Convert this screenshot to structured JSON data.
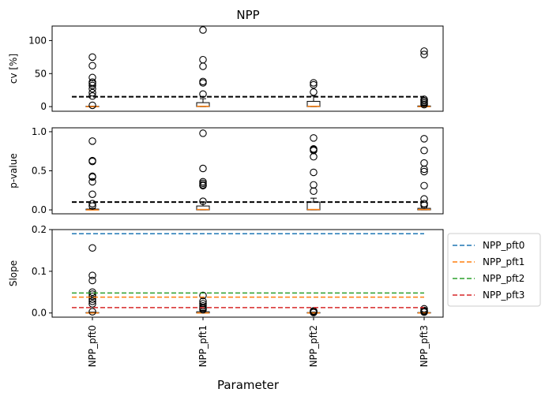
{
  "figure": {
    "title": "NPP",
    "xlabel": "Parameter"
  },
  "chart_data": [
    {
      "type": "box",
      "name": "cv",
      "ylabel": "cv [%]",
      "yticks": [
        0,
        50,
        100
      ],
      "ylim": [
        -7,
        122
      ],
      "categories": [
        "NPP_pft0",
        "NPP_pft1",
        "NPP_pft2",
        "NPP_pft3"
      ],
      "boxes": [
        {
          "q1": 0,
          "median": 0,
          "q3": 0.5,
          "whisker_low": 0,
          "whisker_high": 0.5,
          "outliers": [
            75,
            62,
            44,
            37,
            35,
            32,
            27,
            21,
            16,
            2
          ]
        },
        {
          "q1": 0,
          "median": 0.5,
          "q3": 6,
          "whisker_low": 0,
          "whisker_high": 12,
          "outliers": [
            116,
            71,
            61,
            38,
            36,
            19
          ]
        },
        {
          "q1": 0,
          "median": 0.5,
          "q3": 8,
          "whisker_low": 0,
          "whisker_high": 16,
          "outliers": [
            36,
            33,
            22
          ]
        },
        {
          "q1": 0,
          "median": 0,
          "q3": 1,
          "whisker_low": 0,
          "whisker_high": 2,
          "outliers": [
            84,
            79,
            11,
            9,
            7,
            5,
            3
          ]
        }
      ],
      "reference_line": 15
    },
    {
      "type": "box",
      "name": "p-value",
      "ylabel": "p-value",
      "yticks": [
        0.0,
        0.5,
        1.0
      ],
      "ylim": [
        -0.05,
        1.05
      ],
      "categories": [
        "NPP_pft0",
        "NPP_pft1",
        "NPP_pft2",
        "NPP_pft3"
      ],
      "boxes": [
        {
          "q1": 0,
          "median": 0,
          "q3": 0.01,
          "whisker_low": 0,
          "whisker_high": 0.02,
          "outliers": [
            0.88,
            0.63,
            0.62,
            0.43,
            0.42,
            0.36,
            0.2,
            0.08,
            0.05
          ]
        },
        {
          "q1": 0,
          "median": 0.005,
          "q3": 0.05,
          "whisker_low": 0,
          "whisker_high": 0.1,
          "outliers": [
            0.98,
            0.53,
            0.36,
            0.34,
            0.32,
            0.31,
            0.11
          ]
        },
        {
          "q1": 0,
          "median": 0.005,
          "q3": 0.1,
          "whisker_low": 0,
          "whisker_high": 0.15,
          "outliers": [
            0.92,
            0.78,
            0.77,
            0.76,
            0.68,
            0.48,
            0.32,
            0.24
          ]
        },
        {
          "q1": 0,
          "median": 0.005,
          "q3": 0.02,
          "whisker_low": 0,
          "whisker_high": 0.04,
          "outliers": [
            0.91,
            0.76,
            0.6,
            0.52,
            0.49,
            0.31,
            0.14,
            0.08,
            0.06
          ]
        }
      ],
      "reference_line": 0.1
    },
    {
      "type": "box",
      "name": "slope",
      "ylabel": "Slope",
      "yticks": [
        0.0,
        0.1,
        0.2
      ],
      "ylim": [
        -0.01,
        0.2
      ],
      "categories": [
        "NPP_pft0",
        "NPP_pft1",
        "NPP_pft2",
        "NPP_pft3"
      ],
      "boxes": [
        {
          "q1": 0,
          "median": 0,
          "q3": 0.001,
          "whisker_low": 0,
          "whisker_high": 0.002,
          "outliers": [
            0.156,
            0.09,
            0.078,
            0.05,
            0.045,
            0.04,
            0.033,
            0.028,
            0.022,
            0.003
          ]
        },
        {
          "q1": 0,
          "median": 0,
          "q3": 0.003,
          "whisker_low": 0,
          "whisker_high": 0.006,
          "outliers": [
            0.042,
            0.028,
            0.022,
            0.017,
            0.013,
            0.011,
            0.008
          ]
        },
        {
          "q1": 0,
          "median": 0,
          "q3": 0.001,
          "whisker_low": 0,
          "whisker_high": 0.002,
          "outliers": [
            0.005,
            0.004,
            0.003,
            0.002,
            0.001
          ]
        },
        {
          "q1": 0,
          "median": 0,
          "q3": 0.001,
          "whisker_low": 0,
          "whisker_high": 0.002,
          "outliers": [
            0.01,
            0.006,
            0.004,
            0.002
          ]
        }
      ],
      "series": [
        {
          "name": "NPP_pft0",
          "value": 0.19,
          "color": "#1f77b4"
        },
        {
          "name": "NPP_pft1",
          "value": 0.038,
          "color": "#ff7f0e"
        },
        {
          "name": "NPP_pft2",
          "value": 0.048,
          "color": "#2ca02c"
        },
        {
          "name": "NPP_pft3",
          "value": 0.013,
          "color": "#d62728"
        }
      ],
      "legend_position": "right, outside"
    }
  ],
  "colors": {
    "median": "#ff7f0e",
    "reference": "#000000"
  }
}
